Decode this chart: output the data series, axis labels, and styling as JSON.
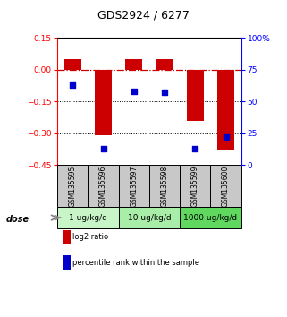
{
  "title": "GDS2924 / 6277",
  "samples": [
    "GSM135595",
    "GSM135596",
    "GSM135597",
    "GSM135598",
    "GSM135599",
    "GSM135600"
  ],
  "log2_ratios": [
    0.05,
    -0.31,
    0.05,
    0.05,
    -0.24,
    -0.38
  ],
  "percentile_ranks": [
    63,
    13,
    58,
    57,
    13,
    22
  ],
  "dose_groups": [
    {
      "label": "1 ug/kg/d",
      "samples": [
        0,
        1
      ],
      "color": "#c8f5c8"
    },
    {
      "label": "10 ug/kg/d",
      "samples": [
        2,
        3
      ],
      "color": "#a8eda8"
    },
    {
      "label": "1000 ug/kg/d",
      "samples": [
        4,
        5
      ],
      "color": "#60d860"
    }
  ],
  "bar_color": "#cc0000",
  "dot_color": "#0000cc",
  "ylim_left": [
    -0.45,
    0.15
  ],
  "ylim_right": [
    0,
    100
  ],
  "yticks_left": [
    0.15,
    0.0,
    -0.15,
    -0.3,
    -0.45
  ],
  "yticks_right": [
    100,
    75,
    50,
    25,
    0
  ],
  "hline_zero_color": "#cc0000",
  "hline_dotted_vals": [
    -0.15,
    -0.3
  ],
  "legend_red": "log2 ratio",
  "legend_blue": "percentile rank within the sample",
  "dose_label": "dose",
  "sample_bg_color": "#c8c8c8",
  "bar_width": 0.55,
  "dot_size": 25
}
